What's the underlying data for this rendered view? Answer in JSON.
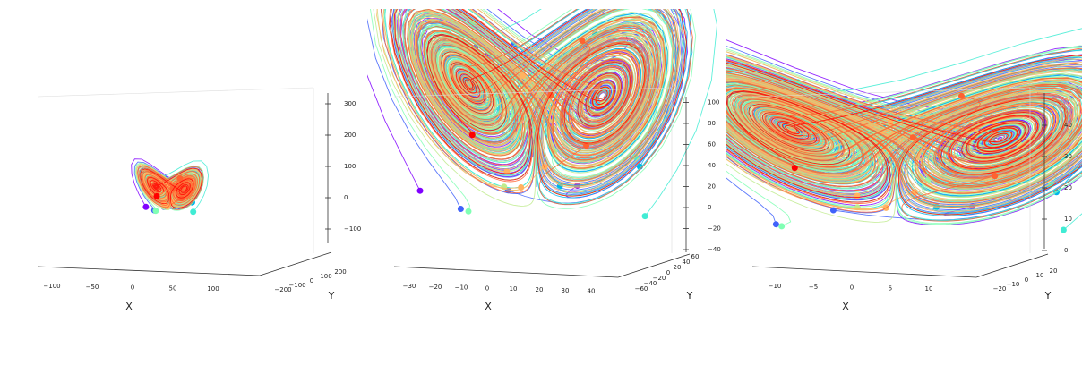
{
  "chart_data": [
    {
      "type": "line",
      "projection": "3d",
      "title": "",
      "xlabel": "X",
      "ylabel": "Y",
      "zlabel": "",
      "x_ticks": [
        "−100",
        "−50",
        "0",
        "50",
        "100"
      ],
      "y_ticks": [
        "−200",
        "−100",
        "0",
        "100",
        "200"
      ],
      "z_ticks": [
        "−100",
        "0",
        "100",
        "200",
        "300"
      ],
      "series_count": 30,
      "colormap": "rainbow",
      "grid": false
    },
    {
      "type": "line",
      "projection": "3d",
      "title": "",
      "xlabel": "X",
      "ylabel": "Y",
      "zlabel": "",
      "x_ticks": [
        "−30",
        "−20",
        "−10",
        "0",
        "10",
        "20",
        "30",
        "40"
      ],
      "y_ticks": [
        "−60",
        "−40",
        "−20",
        "0",
        "20",
        "40",
        "60"
      ],
      "z_ticks": [
        "−40",
        "−20",
        "0",
        "20",
        "40",
        "60",
        "80",
        "100"
      ],
      "series_count": 30,
      "colormap": "rainbow",
      "grid": false
    },
    {
      "type": "line",
      "projection": "3d",
      "title": "",
      "xlabel": "X",
      "ylabel": "Y",
      "zlabel": "",
      "x_ticks": [
        "−10",
        "−5",
        "0",
        "5",
        "10"
      ],
      "y_ticks": [
        "−20",
        "−10",
        "0",
        "10",
        "20"
      ],
      "z_ticks": [
        "0",
        "10",
        "20",
        "30",
        "40"
      ],
      "series_count": 30,
      "colormap": "rainbow",
      "grid": false
    }
  ],
  "colors": {
    "palette": [
      "#8000ff",
      "#4062fa",
      "#00b5eb",
      "#40ecd4",
      "#80ffb4",
      "#c0eb8d",
      "#ffb360",
      "#ff6230",
      "#ff0000"
    ]
  }
}
